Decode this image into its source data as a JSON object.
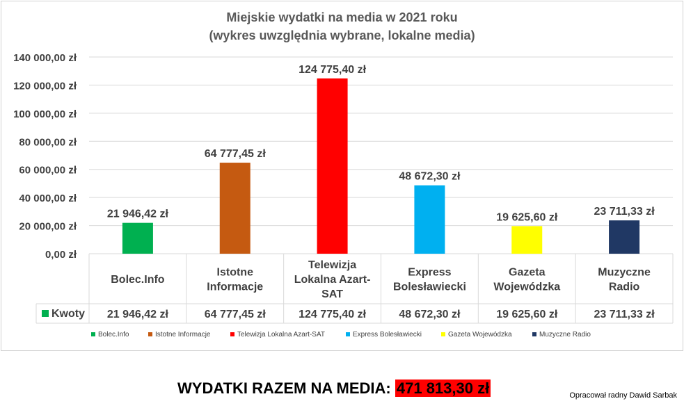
{
  "chart_data": {
    "type": "bar",
    "title": [
      "Miejskie wydatki na media w 2021 roku",
      "(wykres uwzględnia wybrane, lokalne media)"
    ],
    "categories": [
      [
        "Bolec.Info"
      ],
      [
        "Istotne",
        "Informacje"
      ],
      [
        "Telewizja",
        "Lokalna Azart-",
        "SAT"
      ],
      [
        "Express",
        "Bolesławiecki"
      ],
      [
        "Gazeta",
        "Wojewódzka"
      ],
      [
        "Muzyczne",
        "Radio"
      ]
    ],
    "legend_labels": [
      "Bolec.Info",
      "Istotne Informacje",
      "Telewizja Lokalna Azart-SAT",
      "Express Bolesławiecki",
      "Gazeta Wojewódzka",
      "Muzyczne Radio"
    ],
    "values": [
      21946.42,
      64777.45,
      124775.4,
      48672.3,
      19625.6,
      23711.33
    ],
    "value_labels": [
      "21 946,42 zł",
      "64 777,45 zł",
      "124 775,40 zł",
      "48 672,30 zł",
      "19 625,60 zł",
      "23 711,33 zł"
    ],
    "colors": [
      "#00b050",
      "#c55a11",
      "#ff0000",
      "#00b0f0",
      "#ffff00",
      "#203864"
    ],
    "ylim": [
      0,
      140000
    ],
    "yticks": [
      0,
      20000,
      40000,
      60000,
      80000,
      100000,
      120000,
      140000
    ],
    "ytick_labels": [
      "0,00 zł",
      "20 000,00 zł",
      "40 000,00 zł",
      "60 000,00 zł",
      "80 000,00 zł",
      "100 000,00 zł",
      "120 000,00 zł",
      "140 000,00 zł"
    ],
    "grid": true,
    "table_series_name": "Kwoty",
    "legend_position": "bottom"
  },
  "total": {
    "label": "WYDATKI RAZEM NA MEDIA:",
    "amount": "471 813,30 zł"
  },
  "author": "Opracował radny Dawid Sarbak"
}
